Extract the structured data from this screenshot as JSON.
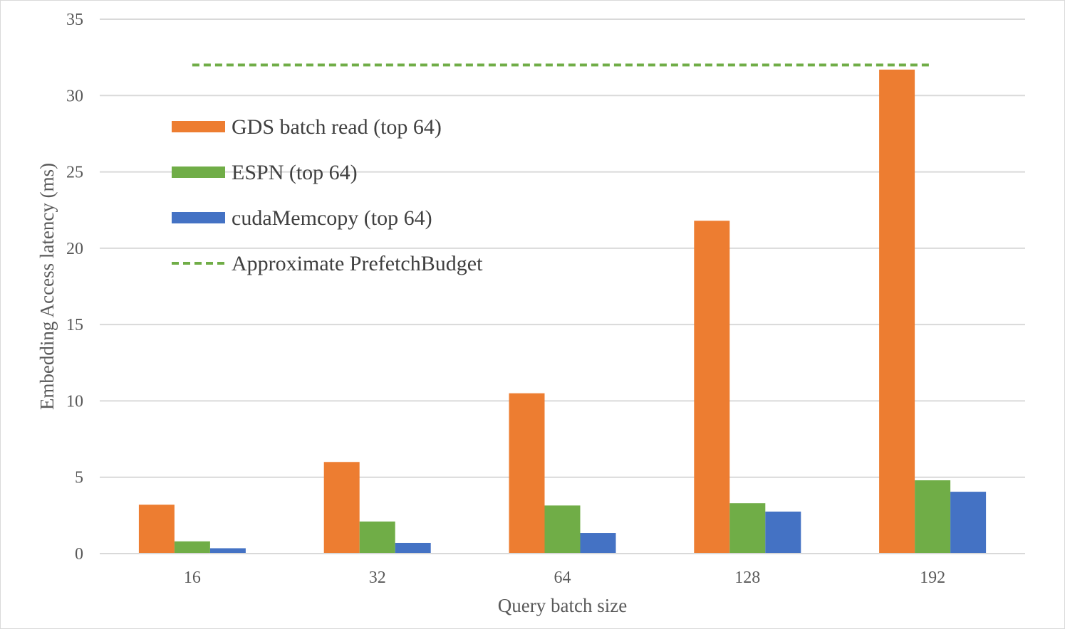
{
  "chart_data": {
    "type": "bar",
    "title": "",
    "xlabel": "Query batch size",
    "ylabel": "Embedding Access latency (ms)",
    "categories": [
      "16",
      "32",
      "64",
      "128",
      "192"
    ],
    "ylim": [
      0,
      35
    ],
    "yticks": [
      "0",
      "5",
      "10",
      "15",
      "20",
      "25",
      "30",
      "35"
    ],
    "grid": true,
    "legend_position": "top-left",
    "series": [
      {
        "name": "GDS batch read (top 64)",
        "color": "#ed7d31",
        "values": [
          3.2,
          6.0,
          10.5,
          21.8,
          31.7
        ]
      },
      {
        "name": "ESPN (top 64)",
        "color": "#70ad47",
        "values": [
          0.8,
          2.1,
          3.15,
          3.3,
          4.8
        ]
      },
      {
        "name": "cudaMemcopy (top 64)",
        "color": "#4472c4",
        "values": [
          0.35,
          0.7,
          1.35,
          2.75,
          4.05
        ]
      }
    ],
    "reference_line": {
      "name": "Approximate PrefetchBudget",
      "color": "#70ad47",
      "style": "dashed",
      "value": 32,
      "x_start_category": "16",
      "x_end_category": "192"
    }
  }
}
